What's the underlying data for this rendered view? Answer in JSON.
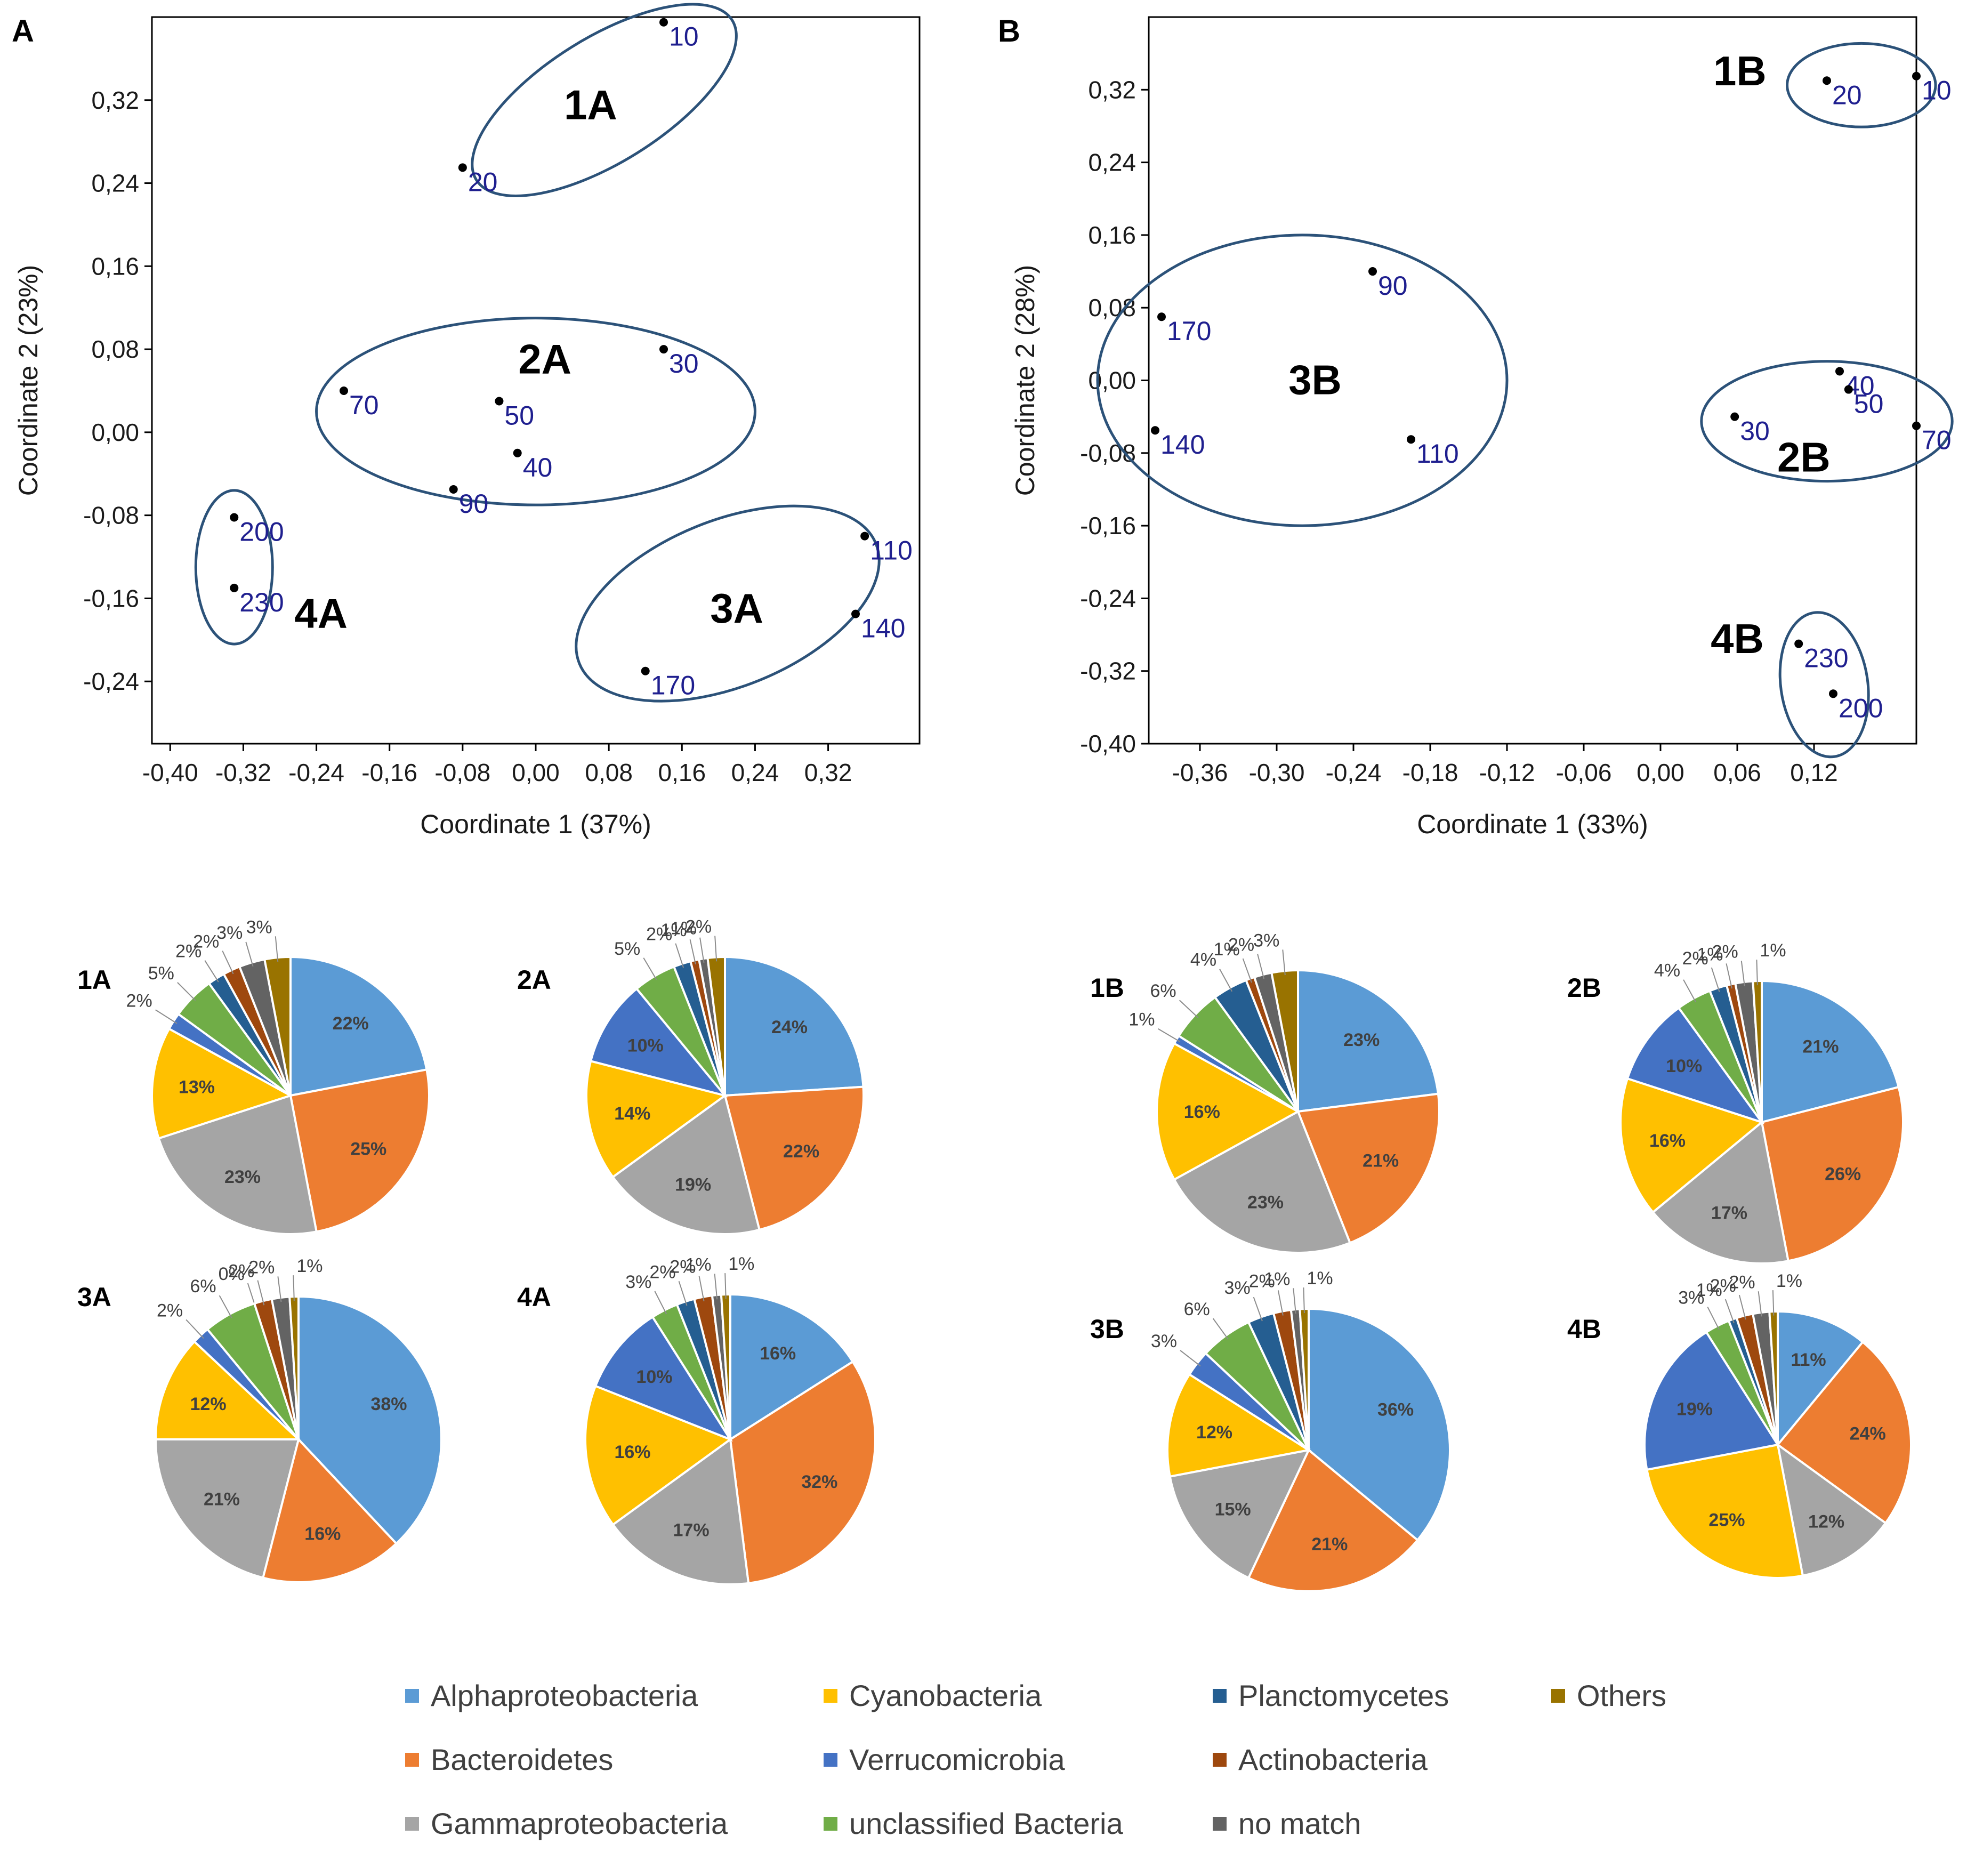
{
  "figure": {
    "panel_a_letter": "A",
    "panel_b_letter": "B"
  },
  "chart_data": [
    {
      "id": "A",
      "type": "scatter",
      "title": "",
      "xlabel": "Coordinate 1  (37%)",
      "ylabel": "Coordinate 2  (23%)",
      "xlim": [
        -0.42,
        0.42
      ],
      "ylim": [
        -0.3,
        0.4
      ],
      "xticks": [
        -0.4,
        -0.32,
        -0.24,
        -0.16,
        -0.08,
        0.0,
        0.08,
        0.16,
        0.24,
        0.32
      ],
      "xtick_labels": [
        "-0,40",
        "-0,32",
        "-0,24",
        "-0,16",
        "-0,08",
        "0,00",
        "0,08",
        "0,16",
        "0,24",
        "0,32"
      ],
      "yticks": [
        0.32,
        0.24,
        0.16,
        0.08,
        0.0,
        -0.08,
        -0.16,
        -0.24
      ],
      "ytick_labels": [
        "0,32",
        "0,24",
        "0,16",
        "0,08",
        "0,00",
        "-0,08",
        "-0,16",
        "-0,24"
      ],
      "points": [
        {
          "label": "10",
          "x": 0.14,
          "y": 0.395
        },
        {
          "label": "20",
          "x": -0.08,
          "y": 0.255
        },
        {
          "label": "30",
          "x": 0.14,
          "y": 0.08
        },
        {
          "label": "70",
          "x": -0.21,
          "y": 0.04
        },
        {
          "label": "50",
          "x": -0.04,
          "y": 0.03
        },
        {
          "label": "40",
          "x": -0.02,
          "y": -0.02
        },
        {
          "label": "90",
          "x": -0.09,
          "y": -0.055
        },
        {
          "label": "110",
          "x": 0.36,
          "y": -0.1
        },
        {
          "label": "140",
          "x": 0.35,
          "y": -0.175
        },
        {
          "label": "170",
          "x": 0.12,
          "y": -0.23
        },
        {
          "label": "200",
          "x": -0.33,
          "y": -0.082
        },
        {
          "label": "230",
          "x": -0.33,
          "y": -0.15
        }
      ],
      "clusters": [
        {
          "label": "1A",
          "cx": 0.075,
          "cy": 0.32,
          "rx": 0.165,
          "ry": 0.06,
          "angle": -32,
          "lx": 0.06,
          "ly": 0.315
        },
        {
          "label": "2A",
          "cx": 0.0,
          "cy": 0.02,
          "rx": 0.24,
          "ry": 0.09,
          "angle": 0,
          "lx": 0.01,
          "ly": 0.07
        },
        {
          "label": "3A",
          "cx": 0.21,
          "cy": -0.165,
          "rx": 0.175,
          "ry": 0.08,
          "angle": -22,
          "lx": 0.22,
          "ly": -0.17
        },
        {
          "label": "4A",
          "cx": -0.33,
          "cy": -0.13,
          "rx": 0.042,
          "ry": 0.074,
          "angle": 0,
          "lx": -0.235,
          "ly": -0.175
        }
      ]
    },
    {
      "id": "B",
      "type": "scatter",
      "title": "",
      "xlabel": "Coordinate 1 (33%)",
      "ylabel": "Coordinate 2  (28%)",
      "xlim": [
        -0.4,
        0.2
      ],
      "ylim": [
        -0.4,
        0.4
      ],
      "xticks": [
        -0.36,
        -0.3,
        -0.24,
        -0.18,
        -0.12,
        -0.06,
        0.0,
        0.06,
        0.12
      ],
      "xtick_labels": [
        "-0,36",
        "-0,30",
        "-0,24",
        "-0,18",
        "-0,12",
        "-0,06",
        "0,00",
        "0,06",
        "0,12"
      ],
      "yticks": [
        0.32,
        0.24,
        0.16,
        0.08,
        0.0,
        -0.08,
        -0.16,
        -0.24,
        -0.32,
        -0.4
      ],
      "ytick_labels": [
        "0,32",
        "0,24",
        "0,16",
        "0,08",
        "0,00",
        "-0,08",
        "-0,16",
        "-0,24",
        "-0,32",
        "-0,40"
      ],
      "points": [
        {
          "label": "10",
          "x": 0.2,
          "y": 0.335
        },
        {
          "label": "20",
          "x": 0.13,
          "y": 0.33
        },
        {
          "label": "90",
          "x": -0.225,
          "y": 0.12
        },
        {
          "label": "170",
          "x": -0.39,
          "y": 0.07
        },
        {
          "label": "140",
          "x": -0.395,
          "y": -0.055
        },
        {
          "label": "110",
          "x": -0.195,
          "y": -0.065
        },
        {
          "label": "40",
          "x": 0.14,
          "y": 0.01
        },
        {
          "label": "50",
          "x": 0.147,
          "y": -0.01
        },
        {
          "label": "30",
          "x": 0.058,
          "y": -0.04
        },
        {
          "label": "70",
          "x": 0.2,
          "y": -0.05
        },
        {
          "label": "230",
          "x": 0.108,
          "y": -0.29
        },
        {
          "label": "200",
          "x": 0.135,
          "y": -0.345
        }
      ],
      "clusters": [
        {
          "label": "1B",
          "cx": 0.157,
          "cy": 0.325,
          "rx": 0.058,
          "ry": 0.046,
          "angle": 0,
          "lx": 0.062,
          "ly": 0.34
        },
        {
          "label": "2B",
          "cx": 0.13,
          "cy": -0.045,
          "rx": 0.098,
          "ry": 0.066,
          "angle": 0,
          "lx": 0.112,
          "ly": -0.085
        },
        {
          "label": "3B",
          "cx": -0.28,
          "cy": 0.0,
          "rx": 0.16,
          "ry": 0.16,
          "angle": 0,
          "lx": -0.27,
          "ly": 0.0
        },
        {
          "label": "4B",
          "cx": 0.128,
          "cy": -0.335,
          "rx": 0.034,
          "ry": 0.08,
          "angle": -8,
          "lx": 0.06,
          "ly": -0.285
        }
      ]
    },
    {
      "id": "pies",
      "type": "pie",
      "categories": [
        "Alphaproteobacteria",
        "Bacteroidetes",
        "Gammaproteobacteria",
        "Cyanobacteria",
        "Verrucomicrobia",
        "unclassified Bacteria",
        "Planctomycetes",
        "Actinobacteria",
        "no match",
        "Others"
      ],
      "colors": [
        "#5b9bd5",
        "#ed7d31",
        "#a5a5a5",
        "#ffc000",
        "#4472c4",
        "#70ad47",
        "#255e91",
        "#9e480e",
        "#636363",
        "#997300"
      ],
      "series": [
        {
          "name": "1A",
          "values": [
            22,
            25,
            23,
            13,
            2,
            5,
            2,
            2,
            3,
            3
          ],
          "labels": [
            "22%",
            "25%",
            "23%",
            "13%",
            "2%",
            "5%",
            "2%",
            "2%",
            "3%",
            "3%"
          ]
        },
        {
          "name": "2A",
          "values": [
            24,
            22,
            19,
            14,
            10,
            5,
            2,
            1,
            1,
            2
          ],
          "labels": [
            "24%",
            "22%",
            "19%",
            "14%",
            "10%",
            "5%",
            "2%",
            "1%",
            "1%",
            "2%"
          ]
        },
        {
          "name": "3A",
          "values": [
            38,
            16,
            21,
            12,
            2,
            6,
            0,
            2,
            2,
            1
          ],
          "labels": [
            "38%",
            "16%",
            "21%",
            "12%",
            "2%",
            "6%",
            "0%",
            "2%",
            "2%",
            "1%"
          ]
        },
        {
          "name": "4A",
          "values": [
            16,
            32,
            17,
            16,
            10,
            3,
            2,
            2,
            1,
            1
          ],
          "labels": [
            "16%",
            "32%",
            "17%",
            "16%",
            "10%",
            "3%",
            "2%",
            "2%",
            "1%",
            "1%"
          ]
        },
        {
          "name": "1B",
          "values": [
            23,
            21,
            23,
            16,
            1,
            6,
            4,
            1,
            2,
            3
          ],
          "labels": [
            "23%",
            "21%",
            "23%",
            "16%",
            "1%",
            "6%",
            "4%",
            "1%",
            "2%",
            "3%"
          ]
        },
        {
          "name": "2B",
          "values": [
            21,
            26,
            17,
            16,
            10,
            4,
            2,
            1,
            2,
            1
          ],
          "labels": [
            "21%",
            "26%",
            "17%",
            "16%",
            "10%",
            "4%",
            "2%",
            "1%",
            "2%",
            "1%"
          ]
        },
        {
          "name": "3B",
          "values": [
            36,
            21,
            15,
            12,
            3,
            6,
            3,
            2,
            1,
            1
          ],
          "labels": [
            "36%",
            "21%",
            "15%",
            "12%",
            "3%",
            "6%",
            "3%",
            "2%",
            "1%",
            "1%"
          ]
        },
        {
          "name": "4B",
          "values": [
            11,
            24,
            12,
            25,
            19,
            3,
            1,
            2,
            2,
            1
          ],
          "labels": [
            "11%",
            "24%",
            "12%",
            "25%",
            "19%",
            "3%",
            "1%",
            "2%",
            "2%",
            "1%"
          ]
        }
      ],
      "legend_position": "bottom"
    }
  ]
}
